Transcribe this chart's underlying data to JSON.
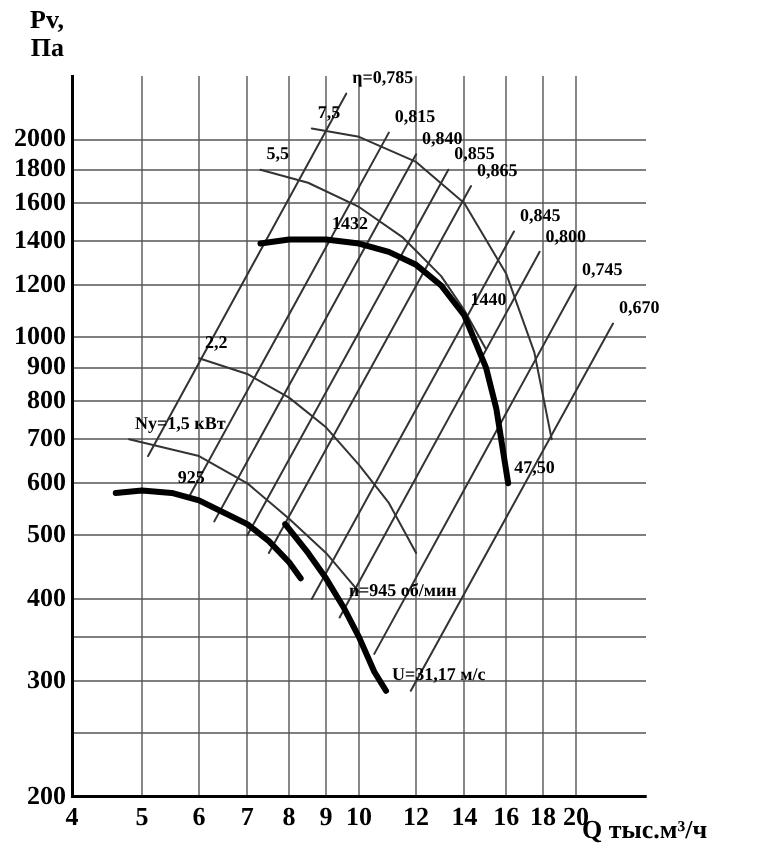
{
  "chart_data": {
    "type": "line",
    "xlabel": "Q тыс.м³/ч",
    "ylabel": "Pv, Па",
    "log": "xy",
    "grid": true,
    "legend": false,
    "marker": "none",
    "xlim": [
      4,
      25
    ],
    "xticks": [
      4,
      5,
      6,
      7,
      8,
      9,
      10,
      12,
      14,
      16,
      18,
      20
    ],
    "ylim": [
      200,
      2500
    ],
    "yticks": [
      200,
      {
        "value": 250,
        "label": null
      },
      300,
      {
        "value": 350,
        "label": null
      },
      400,
      500,
      600,
      700,
      800,
      900,
      1000,
      1200,
      1400,
      1600,
      1800,
      2000
    ],
    "series": [
      {
        "color": "#000000",
        "x": [
          7.3,
          8,
          9,
          10,
          11,
          12,
          13,
          14,
          15,
          15.5,
          16.1
        ],
        "values": [
          1390,
          1410,
          1410,
          1390,
          1350,
          1290,
          1200,
          1080,
          900,
          780,
          600
        ]
      },
      {
        "color": "#000000",
        "x": [
          4.6,
          5,
          5.5,
          6,
          7,
          7.5,
          8,
          8.3
        ],
        "values": [
          580,
          585,
          580,
          565,
          520,
          490,
          455,
          430
        ]
      },
      {
        "color": "#000000",
        "x": [
          7.9,
          8.5,
          9,
          9.5,
          10,
          10.5,
          10.9
        ],
        "values": [
          520,
          470,
          430,
          390,
          350,
          310,
          290
        ]
      },
      {
        "color": "#333333",
        "x": [
          9.6,
          5.1
        ],
        "values": [
          2350,
          660
        ]
      },
      {
        "color": "#333333",
        "x": [
          11,
          5.8
        ],
        "values": [
          2050,
          570
        ]
      },
      {
        "color": "#333333",
        "x": [
          12,
          6.3
        ],
        "values": [
          1900,
          525
        ]
      },
      {
        "color": "#333333",
        "x": [
          13.3,
          7
        ],
        "values": [
          1800,
          500
        ]
      },
      {
        "color": "#333333",
        "x": [
          14.3,
          7.5
        ],
        "values": [
          1700,
          470
        ]
      },
      {
        "color": "#333333",
        "x": [
          16.4,
          8.6
        ],
        "values": [
          1450,
          400
        ]
      },
      {
        "color": "#333333",
        "x": [
          17.8,
          9.4
        ],
        "values": [
          1350,
          375
        ]
      },
      {
        "color": "#333333",
        "x": [
          20,
          10.5
        ],
        "values": [
          1200,
          330
        ]
      },
      {
        "color": "#333333",
        "x": [
          22.5,
          11.8
        ],
        "values": [
          1050,
          290
        ]
      },
      {
        "color": "#333333",
        "x": [
          4.8,
          6,
          7,
          8,
          9,
          10
        ],
        "values": [
          700,
          660,
          600,
          530,
          470,
          410
        ]
      },
      {
        "color": "#333333",
        "x": [
          6,
          7,
          8,
          9,
          10,
          11,
          12
        ],
        "values": [
          930,
          880,
          810,
          730,
          640,
          560,
          470
        ]
      },
      {
        "color": "#333333",
        "x": [
          7.3,
          8.5,
          10,
          11.5,
          13,
          14,
          15
        ],
        "values": [
          1800,
          1720,
          1580,
          1420,
          1240,
          1100,
          960
        ]
      },
      {
        "color": "#333333",
        "x": [
          8.6,
          10,
          12,
          14,
          16,
          17.5,
          18.5
        ],
        "values": [
          2080,
          2020,
          1850,
          1600,
          1250,
          950,
          700
        ]
      }
    ],
    "annotations": [
      {
        "text": "1432",
        "x": 9,
        "y": 1410
      },
      {
        "text": "1440",
        "x": 14,
        "y": 1080
      },
      {
        "text": "47,50",
        "x": 16.1,
        "y": 600
      },
      {
        "text": "925",
        "x": 5.5,
        "y": 580
      },
      {
        "text": "n=945 об/мин",
        "x": 9.5,
        "y": 390
      },
      {
        "text": "U=31,17 м/с",
        "x": 10.9,
        "y": 290
      },
      {
        "text": "Ny=1,5 кВт",
        "x": 4.8,
        "y": 700
      },
      {
        "text": "2,2",
        "x": 6,
        "y": 930
      },
      {
        "text": "5,5",
        "x": 7.3,
        "y": 1800
      },
      {
        "text": "7,5",
        "x": 8.6,
        "y": 2080
      },
      {
        "text": "η=0,785",
        "x": 9.6,
        "y": 2350
      },
      {
        "text": "0,815",
        "x": 11,
        "y": 2050
      },
      {
        "text": "0,840",
        "x": 12,
        "y": 1900
      },
      {
        "text": "0,855",
        "x": 13.3,
        "y": 1800
      },
      {
        "text": "0,865",
        "x": 14.3,
        "y": 1700
      },
      {
        "text": "0,845",
        "x": 16.4,
        "y": 1450
      },
      {
        "text": "0,800",
        "x": 17.8,
        "y": 1350
      },
      {
        "text": "0,745",
        "x": 20,
        "y": 1200
      },
      {
        "text": "0,670",
        "x": 22.5,
        "y": 1050
      }
    ]
  }
}
